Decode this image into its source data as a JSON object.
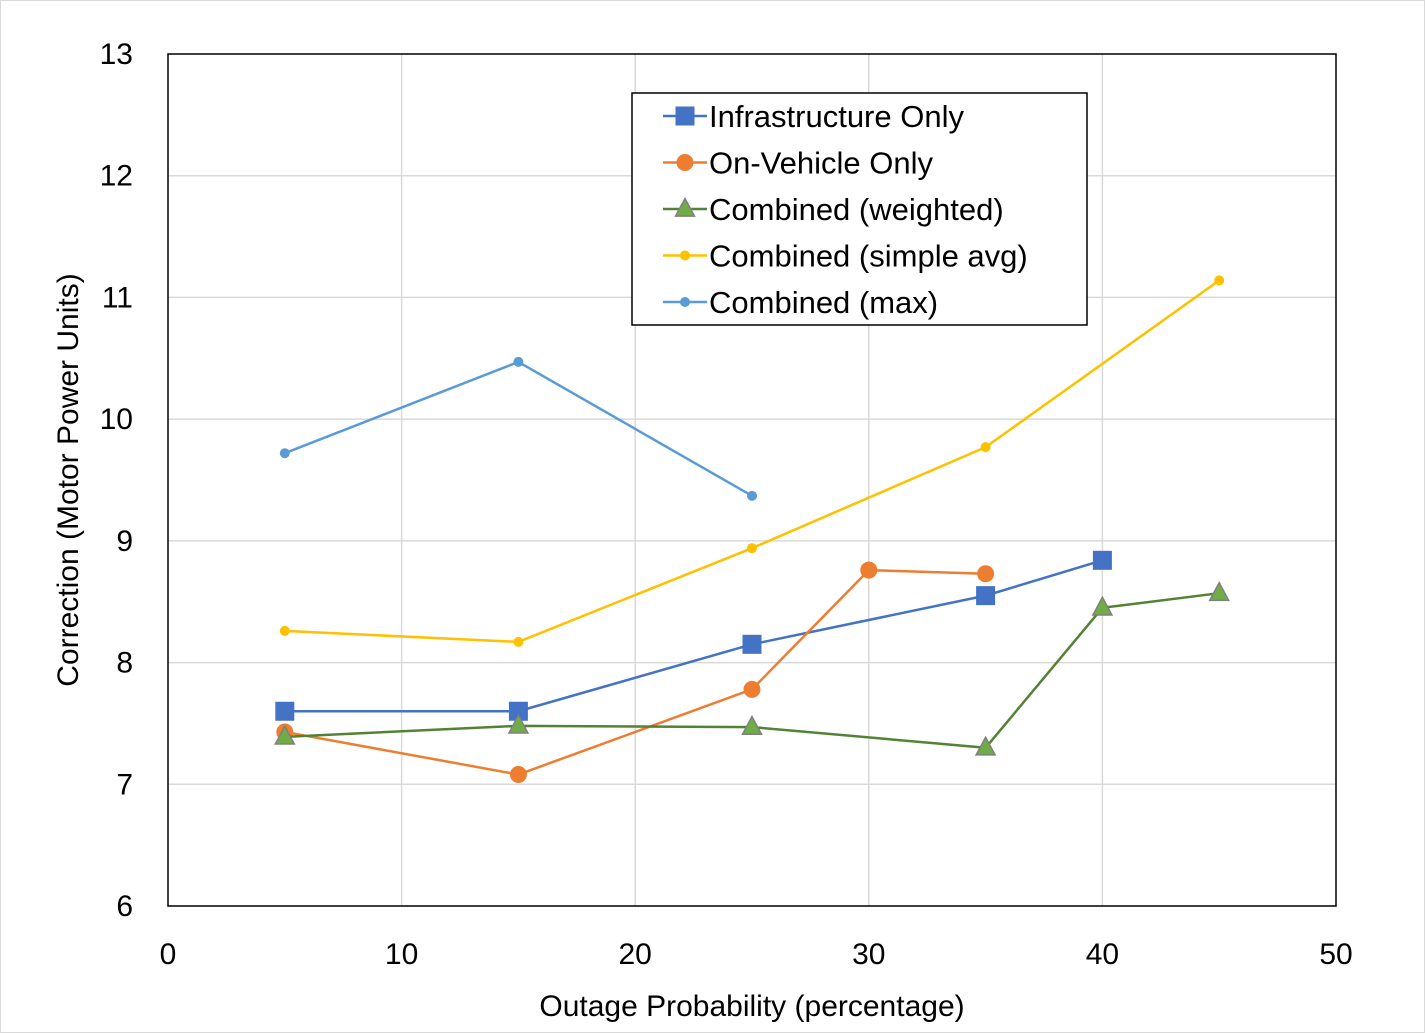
{
  "chart_data": {
    "type": "line",
    "title": "",
    "xlabel": "Outage Probability (percentage)",
    "ylabel": "Correction (Motor Power Units)",
    "xlim": [
      0,
      50
    ],
    "ylim": [
      6,
      13
    ],
    "x_ticks": [
      0,
      10,
      20,
      30,
      40,
      50
    ],
    "y_ticks": [
      6,
      7,
      8,
      9,
      10,
      11,
      12,
      13
    ],
    "grid": true,
    "legend_position": "top-right",
    "series": [
      {
        "name": "Infrastructure Only",
        "color": "#4472C4",
        "marker": "square",
        "points": [
          [
            5,
            7.6
          ],
          [
            15,
            7.6
          ],
          [
            25,
            8.15
          ],
          [
            35,
            8.55
          ],
          [
            40,
            8.84
          ]
        ]
      },
      {
        "name": "On-Vehicle Only",
        "color": "#ED7D31",
        "marker": "circle",
        "points": [
          [
            5,
            7.43
          ],
          [
            15,
            7.08
          ],
          [
            25,
            7.78
          ],
          [
            30,
            8.76
          ],
          [
            35,
            8.73
          ]
        ]
      },
      {
        "name": "Combined (weighted)",
        "color": "#548235",
        "marker_fill": "#70AD47",
        "marker": "triangle",
        "points": [
          [
            5,
            7.39
          ],
          [
            15,
            7.48
          ],
          [
            25,
            7.47
          ],
          [
            35,
            7.3
          ],
          [
            40,
            8.45
          ],
          [
            45,
            8.57
          ]
        ]
      },
      {
        "name": "Combined (simple avg)",
        "color": "#FFC000",
        "marker": "small-circle",
        "points": [
          [
            5,
            8.26
          ],
          [
            15,
            8.17
          ],
          [
            25,
            8.94
          ],
          [
            35,
            9.77
          ],
          [
            45,
            11.14
          ]
        ]
      },
      {
        "name": "Combined (max)",
        "color": "#5B9BD5",
        "marker": "small-circle",
        "points": [
          [
            5,
            9.72
          ],
          [
            15,
            10.47
          ],
          [
            25,
            9.37
          ]
        ]
      }
    ]
  }
}
